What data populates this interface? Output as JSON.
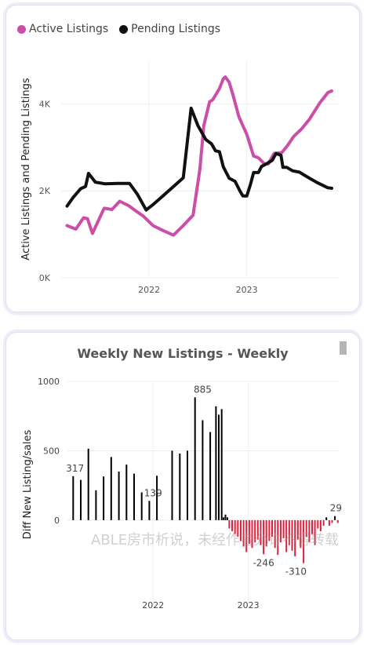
{
  "chart_data": [
    {
      "type": "line",
      "title": "",
      "xlabel": "",
      "ylabel": "Active Listings and Pending Listings",
      "ylim": [
        0,
        5000
      ],
      "yticks": [
        0,
        2000,
        4000
      ],
      "ytick_labels": [
        "0K",
        "2K",
        "4K"
      ],
      "xticks": [
        2022,
        2023
      ],
      "xtick_labels": [
        "2022",
        "2023"
      ],
      "xlim": [
        2021.1,
        2023.95
      ],
      "legend_position": "top-left",
      "grid": true,
      "series": [
        {
          "name": "Active Listings",
          "color": "#cc4ea8",
          "x": [
            2021.16,
            2021.25,
            2021.33,
            2021.37,
            2021.42,
            2021.54,
            2021.62,
            2021.7,
            2021.79,
            2021.87,
            2021.94,
            2022.04,
            2022.15,
            2022.25,
            2022.35,
            2022.45,
            2022.52,
            2022.56,
            2022.62,
            2022.65,
            2022.72,
            2022.76,
            2022.78,
            2022.82,
            2022.86,
            2022.92,
            2023.0,
            2023.07,
            2023.12,
            2023.18,
            2023.22,
            2023.28,
            2023.36,
            2023.42,
            2023.48,
            2023.56,
            2023.64,
            2023.75,
            2023.83,
            2023.87
          ],
          "y": [
            1200,
            1120,
            1380,
            1360,
            1020,
            1600,
            1570,
            1760,
            1660,
            1530,
            1420,
            1200,
            1080,
            980,
            1200,
            1440,
            2500,
            3500,
            4050,
            4090,
            4350,
            4580,
            4620,
            4500,
            4200,
            3700,
            3300,
            2800,
            2760,
            2620,
            2620,
            2860,
            2880,
            3050,
            3250,
            3420,
            3640,
            4030,
            4260,
            4300
          ]
        },
        {
          "name": "Pending Listings",
          "color": "#111111",
          "x": [
            2021.16,
            2021.22,
            2021.3,
            2021.35,
            2021.38,
            2021.45,
            2021.55,
            2021.68,
            2021.8,
            2021.88,
            2021.97,
            2022.05,
            2022.15,
            2022.25,
            2022.35,
            2022.43,
            2022.5,
            2022.58,
            2022.64,
            2022.68,
            2022.72,
            2022.76,
            2022.82,
            2022.88,
            2022.93,
            2022.96,
            2023.0,
            2023.04,
            2023.07,
            2023.12,
            2023.15,
            2023.2,
            2023.26,
            2023.3,
            2023.35,
            2023.37,
            2023.41,
            2023.47,
            2023.54,
            2023.62,
            2023.72,
            2023.83,
            2023.87
          ],
          "y": [
            1650,
            1840,
            2050,
            2100,
            2400,
            2200,
            2160,
            2170,
            2170,
            1920,
            1560,
            1700,
            1900,
            2100,
            2300,
            3900,
            3500,
            3180,
            3080,
            2920,
            2900,
            2550,
            2290,
            2220,
            2000,
            1880,
            1880,
            2160,
            2420,
            2420,
            2560,
            2620,
            2700,
            2860,
            2820,
            2540,
            2540,
            2460,
            2430,
            2320,
            2190,
            2070,
            2060
          ]
        }
      ]
    },
    {
      "type": "bar",
      "title": "Weekly New Listings - Weekly",
      "xlabel": "",
      "ylabel": "Diff New Listing/sales",
      "ylim": [
        -600,
        1000
      ],
      "yticks": [
        0,
        500,
        1000
      ],
      "ytick_labels": [
        "0",
        "500",
        "1000"
      ],
      "xticks": [
        2022,
        2023
      ],
      "xtick_labels": [
        "2022",
        "2023"
      ],
      "xlim": [
        2021.1,
        2023.95
      ],
      "grid": true,
      "positive_color": "#000000",
      "negative_color": "#e0213d",
      "data_labels": [
        {
          "x": 2021.18,
          "value": 317,
          "text": "317"
        },
        {
          "x": 2022.0,
          "value": 139,
          "text": "139"
        },
        {
          "x": 2022.52,
          "value": 885,
          "text": "885"
        },
        {
          "x": 2023.16,
          "value": -246,
          "text": "-246"
        },
        {
          "x": 2023.5,
          "value": -310,
          "text": "-310"
        },
        {
          "x": 2023.92,
          "value": 29,
          "text": "29"
        }
      ],
      "series": [
        {
          "name": "",
          "x": [
            2021.16,
            2021.24,
            2021.32,
            2021.4,
            2021.48,
            2021.56,
            2021.64,
            2021.72,
            2021.8,
            2021.88,
            2021.96,
            2022.04,
            2022.2,
            2022.28,
            2022.36,
            2022.44,
            2022.52,
            2022.6,
            2022.66,
            2022.69,
            2022.72,
            2022.74,
            2022.76,
            2022.78,
            2022.8,
            2022.83,
            2022.86,
            2022.89,
            2022.92,
            2022.95,
            2022.98,
            2023.01,
            2023.04,
            2023.07,
            2023.1,
            2023.13,
            2023.16,
            2023.19,
            2023.22,
            2023.25,
            2023.28,
            2023.31,
            2023.34,
            2023.37,
            2023.4,
            2023.43,
            2023.46,
            2023.49,
            2023.52,
            2023.55,
            2023.58,
            2023.61,
            2023.64,
            2023.67,
            2023.7,
            2023.73,
            2023.76,
            2023.79,
            2023.82,
            2023.85,
            2023.88,
            2023.91,
            2023.94
          ],
          "values": [
            317,
            290,
            515,
            215,
            315,
            455,
            350,
            400,
            335,
            200,
            139,
            320,
            500,
            480,
            500,
            885,
            720,
            635,
            820,
            760,
            800,
            20,
            40,
            20,
            -60,
            -80,
            -100,
            -120,
            -150,
            -190,
            -230,
            -170,
            -200,
            -160,
            -140,
            -180,
            -246,
            -190,
            -150,
            -120,
            -200,
            -250,
            -160,
            -130,
            -230,
            -180,
            -220,
            -260,
            -140,
            -200,
            -310,
            -120,
            -160,
            -100,
            -180,
            -60,
            -80,
            -40,
            20,
            -40,
            -20,
            29,
            -20
          ]
        }
      ]
    }
  ],
  "watermark": "ABLE房市析说，未经作者允许不得转载"
}
